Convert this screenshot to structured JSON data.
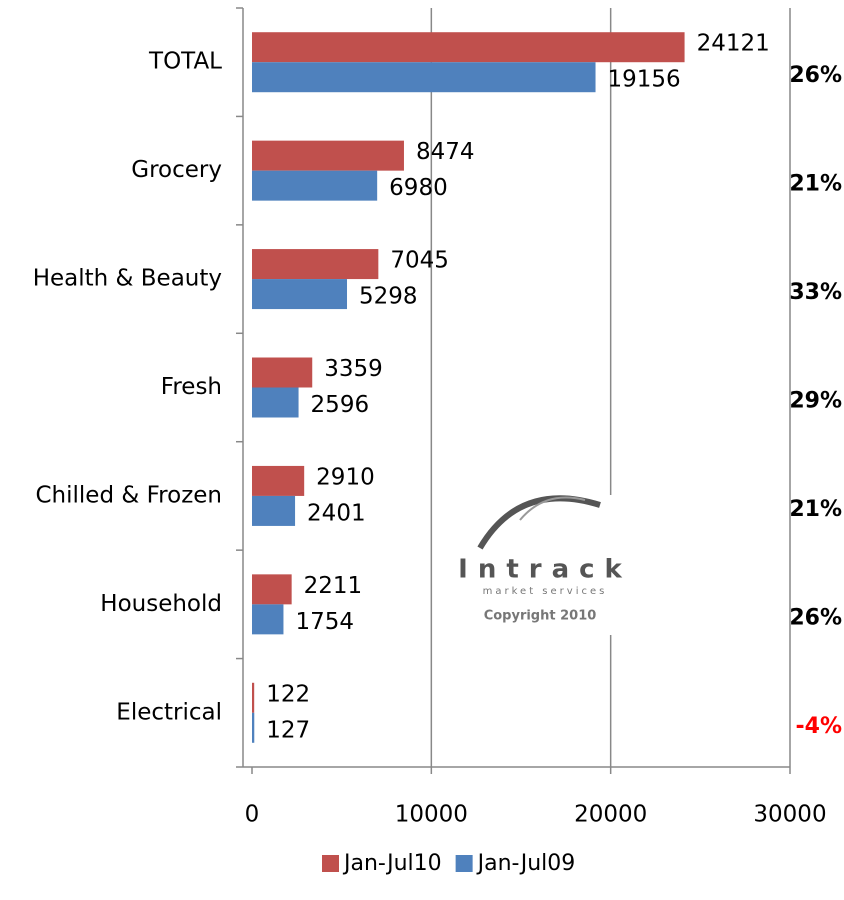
{
  "chart_data": {
    "type": "hbar",
    "categories": [
      "TOTAL",
      "Grocery",
      "Health & Beauty",
      "Fresh",
      "Chilled & Frozen",
      "Household",
      "Electrical"
    ],
    "series": [
      {
        "name": "Jan-Jul10",
        "color": "#c0504d",
        "values": [
          24121,
          8474,
          7045,
          3359,
          2910,
          2211,
          122
        ]
      },
      {
        "name": "Jan-Jul09",
        "color": "#4f81bd",
        "values": [
          19156,
          6980,
          5298,
          2596,
          2401,
          1754,
          127
        ]
      }
    ],
    "xlim": [
      0,
      30000
    ],
    "xticks": [
      0,
      10000,
      20000,
      30000
    ],
    "grid": true,
    "legend": "bottom",
    "annotations": [
      {
        "text": "26%",
        "color": "#000000"
      },
      {
        "text": "21%",
        "color": "#000000"
      },
      {
        "text": "33%",
        "color": "#000000"
      },
      {
        "text": "29%",
        "color": "#000000"
      },
      {
        "text": "21%",
        "color": "#000000"
      },
      {
        "text": "26%",
        "color": "#000000"
      },
      {
        "text": "-4%",
        "color": "#ff0000"
      }
    ],
    "watermark": {
      "name": "Intrack",
      "tagline": "market services",
      "copyright": "Copyright 2010"
    }
  }
}
